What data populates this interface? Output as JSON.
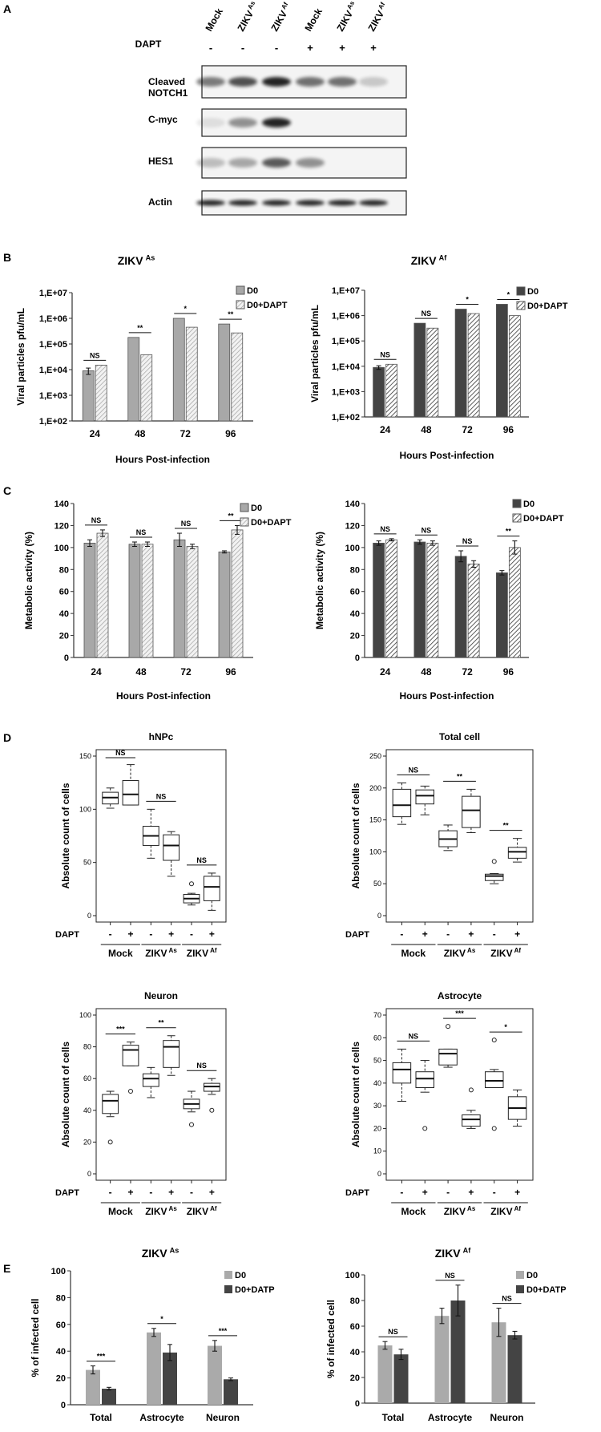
{
  "panels": {
    "A": "A",
    "B": "B",
    "C": "C",
    "D": "D",
    "E": "E"
  },
  "blot": {
    "lanes": [
      {
        "label": "Mock",
        "sup": ""
      },
      {
        "label": "ZIKV",
        "sup": "As"
      },
      {
        "label": "ZIKV",
        "sup": "Af"
      },
      {
        "label": "Mock",
        "sup": ""
      },
      {
        "label": "ZIKV",
        "sup": "As"
      },
      {
        "label": "ZIKV",
        "sup": "Af"
      }
    ],
    "treatment_label": "DAPT",
    "treatment": [
      "-",
      "-",
      "-",
      "+",
      "+",
      "+"
    ],
    "rows": [
      "Cleaved NOTCH1",
      "C-myc",
      "HES1",
      "Actin"
    ],
    "intensity": {
      "Cleaved NOTCH1": [
        0.55,
        0.75,
        0.95,
        0.6,
        0.6,
        0.2
      ],
      "C-myc": [
        0.1,
        0.45,
        0.95,
        0,
        0,
        0
      ],
      "HES1": [
        0.25,
        0.35,
        0.7,
        0.45,
        0,
        0
      ],
      "Actin": [
        0.95,
        0.95,
        0.95,
        0.95,
        0.95,
        0.95
      ]
    }
  },
  "chart_data": [
    {
      "id": "B-left",
      "type": "bar",
      "title": "ZIKV",
      "title_sup": "As",
      "xlabel": "Hours Post-infection",
      "ylabel": "Viral particles pfu/mL",
      "yscale": "log",
      "ylim": [
        100,
        10000000
      ],
      "yticks": [
        "1,E+02",
        "1,E+03",
        "1,E+04",
        "1,E+05",
        "1,E+06",
        "1,E+07"
      ],
      "categories": [
        "24",
        "48",
        "72",
        "96"
      ],
      "series": [
        {
          "name": "D0",
          "values": [
            9000,
            180000,
            1000000,
            600000
          ],
          "err": [
            2500,
            0,
            0,
            0
          ]
        },
        {
          "name": "D0+DAPT",
          "values": [
            15000,
            38000,
            450000,
            270000
          ],
          "err": [
            0,
            0,
            0,
            0
          ]
        }
      ],
      "sig": [
        "NS",
        "**",
        "*",
        "**"
      ],
      "color": "light"
    },
    {
      "id": "B-right",
      "type": "bar",
      "title": "ZIKV",
      "title_sup": "Af",
      "xlabel": "Hours Post-infection",
      "ylabel": "Viral particles pfu/mL",
      "yscale": "log",
      "ylim": [
        100,
        10000000
      ],
      "yticks": [
        "1,E+02",
        "1,E+03",
        "1,E+04",
        "1,E+05",
        "1,E+06",
        "1,E+07"
      ],
      "categories": [
        "24",
        "48",
        "72",
        "96"
      ],
      "series": [
        {
          "name": "D0",
          "values": [
            9000,
            500000,
            1800000,
            2800000
          ],
          "err": [
            1500,
            0,
            0,
            0
          ]
        },
        {
          "name": "D0+DAPT",
          "values": [
            12000,
            320000,
            1200000,
            1000000
          ],
          "err": [
            0,
            0,
            0,
            0
          ]
        }
      ],
      "sig": [
        "NS",
        "NS",
        "*",
        "*"
      ],
      "color": "dark"
    },
    {
      "id": "C-left",
      "type": "bar",
      "title": "",
      "xlabel": "Hours Post-infection",
      "ylabel": "Metabolic activity (%)",
      "ylim": [
        0,
        140
      ],
      "yticks": [
        "0",
        "20",
        "40",
        "60",
        "80",
        "100",
        "120",
        "140"
      ],
      "categories": [
        "24",
        "48",
        "72",
        "96"
      ],
      "series": [
        {
          "name": "D0",
          "values": [
            104,
            103,
            107,
            96
          ],
          "err": [
            3,
            2,
            6,
            1
          ]
        },
        {
          "name": "D0+DAPT",
          "values": [
            113,
            103,
            101,
            116
          ],
          "err": [
            3,
            2,
            2,
            4
          ]
        }
      ],
      "sig": [
        "NS",
        "NS",
        "NS",
        "**"
      ],
      "color": "light"
    },
    {
      "id": "C-right",
      "type": "bar",
      "title": "",
      "xlabel": "Hours Post-infection",
      "ylabel": "Metabolic activity (%)",
      "ylim": [
        0,
        140
      ],
      "yticks": [
        "0",
        "20",
        "40",
        "60",
        "80",
        "100",
        "120",
        "140"
      ],
      "categories": [
        "24",
        "48",
        "72",
        "96"
      ],
      "series": [
        {
          "name": "D0",
          "values": [
            104,
            105,
            92,
            77
          ],
          "err": [
            2,
            2,
            5,
            2
          ]
        },
        {
          "name": "D0+DAPT",
          "values": [
            107,
            104,
            85,
            100
          ],
          "err": [
            1,
            2,
            3,
            6
          ]
        }
      ],
      "sig": [
        "NS",
        "NS",
        "NS",
        "**"
      ],
      "color": "dark"
    },
    {
      "id": "D-hNPc",
      "type": "boxplot",
      "title": "hNPc",
      "ylabel": "Absolute count of  cells",
      "ylim": [
        0,
        150
      ],
      "yticks": [
        "0",
        "50",
        "100",
        "150"
      ],
      "treatment_label": "DAPT",
      "treatment": [
        "-",
        "+",
        "-",
        "+",
        "-",
        "+"
      ],
      "groups": [
        {
          "label": "Mock",
          "sup": ""
        },
        {
          "label": "ZIKV",
          "sup": "As"
        },
        {
          "label": "ZIKV",
          "sup": "Af"
        }
      ],
      "boxes": [
        {
          "min": 101,
          "q1": 105,
          "median": 111,
          "q3": 116,
          "max": 120,
          "outliers": []
        },
        {
          "min": 104,
          "q1": 104,
          "median": 114,
          "q3": 127,
          "max": 142,
          "outliers": []
        },
        {
          "min": 54,
          "q1": 66,
          "median": 75,
          "q3": 84,
          "max": 100,
          "outliers": []
        },
        {
          "min": 37,
          "q1": 52,
          "median": 66,
          "q3": 76,
          "max": 79,
          "outliers": []
        },
        {
          "min": 10,
          "q1": 12,
          "median": 16,
          "q3": 20,
          "max": 21,
          "outliers": [
            30
          ]
        },
        {
          "min": 5,
          "q1": 14,
          "median": 27,
          "q3": 37,
          "max": 40,
          "outliers": []
        }
      ],
      "sig": [
        "NS",
        "NS",
        "NS"
      ]
    },
    {
      "id": "D-total",
      "type": "boxplot",
      "title": "Total cell",
      "ylabel": "Absolute count of  cells",
      "ylim": [
        0,
        250
      ],
      "yticks": [
        "0",
        "50",
        "100",
        "150",
        "200",
        "250"
      ],
      "treatment_label": "DAPT",
      "treatment": [
        "-",
        "+",
        "-",
        "+",
        "-",
        "+"
      ],
      "groups": [
        {
          "label": "Mock",
          "sup": ""
        },
        {
          "label": "ZIKV",
          "sup": "As"
        },
        {
          "label": "ZIKV",
          "sup": "Af"
        }
      ],
      "boxes": [
        {
          "min": 143,
          "q1": 155,
          "median": 173,
          "q3": 198,
          "max": 208,
          "outliers": []
        },
        {
          "min": 158,
          "q1": 175,
          "median": 188,
          "q3": 197,
          "max": 203,
          "outliers": []
        },
        {
          "min": 102,
          "q1": 108,
          "median": 120,
          "q3": 133,
          "max": 142,
          "outliers": []
        },
        {
          "min": 130,
          "q1": 138,
          "median": 165,
          "q3": 187,
          "max": 198,
          "outliers": []
        },
        {
          "min": 50,
          "q1": 55,
          "median": 62,
          "q3": 65,
          "max": 66,
          "outliers": [
            85
          ]
        },
        {
          "min": 84,
          "q1": 90,
          "median": 100,
          "q3": 107,
          "max": 121,
          "outliers": []
        }
      ],
      "sig": [
        "NS",
        "**",
        "**"
      ]
    },
    {
      "id": "D-neuron",
      "type": "boxplot",
      "title": "Neuron",
      "ylabel": "Absolute count of  cells",
      "ylim": [
        0,
        100
      ],
      "yticks": [
        "0",
        "20",
        "40",
        "60",
        "80",
        "100"
      ],
      "treatment_label": "DAPT",
      "treatment": [
        "-",
        "+",
        "-",
        "+",
        "-",
        "+"
      ],
      "groups": [
        {
          "label": "Mock",
          "sup": ""
        },
        {
          "label": "ZIKV",
          "sup": "As"
        },
        {
          "label": "ZIKV",
          "sup": "Af"
        }
      ],
      "boxes": [
        {
          "min": 36,
          "q1": 38,
          "median": 46,
          "q3": 50,
          "max": 52,
          "outliers": [
            20
          ]
        },
        {
          "min": 68,
          "q1": 68,
          "median": 78,
          "q3": 81,
          "max": 83,
          "outliers": [
            52
          ]
        },
        {
          "min": 48,
          "q1": 55,
          "median": 60,
          "q3": 63,
          "max": 67,
          "outliers": []
        },
        {
          "min": 62,
          "q1": 67,
          "median": 80,
          "q3": 84,
          "max": 87,
          "outliers": []
        },
        {
          "min": 39,
          "q1": 41,
          "median": 44,
          "q3": 47,
          "max": 52,
          "outliers": [
            31
          ]
        },
        {
          "min": 50,
          "q1": 52,
          "median": 55,
          "q3": 57,
          "max": 60,
          "outliers": [
            40
          ]
        }
      ],
      "sig": [
        "***",
        "**",
        "NS"
      ]
    },
    {
      "id": "D-astrocyte",
      "type": "boxplot",
      "title": "Astrocyte",
      "ylabel": "Absolute count of  cells",
      "ylim": [
        0,
        70
      ],
      "yticks": [
        "0",
        "10",
        "20",
        "30",
        "40",
        "50",
        "60",
        "70"
      ],
      "treatment_label": "DAPT",
      "treatment": [
        "-",
        "+",
        "-",
        "+",
        "-",
        "+"
      ],
      "groups": [
        {
          "label": "Mock",
          "sup": ""
        },
        {
          "label": "ZIKV",
          "sup": "As"
        },
        {
          "label": "ZIKV",
          "sup": "Af"
        }
      ],
      "boxes": [
        {
          "min": 32,
          "q1": 40,
          "median": 46,
          "q3": 49,
          "max": 55,
          "outliers": []
        },
        {
          "min": 36,
          "q1": 38,
          "median": 42,
          "q3": 45,
          "max": 50,
          "outliers": [
            20
          ]
        },
        {
          "min": 47,
          "q1": 48,
          "median": 53,
          "q3": 55,
          "max": 55,
          "outliers": [
            65
          ]
        },
        {
          "min": 20,
          "q1": 21,
          "median": 24,
          "q3": 26,
          "max": 28,
          "outliers": [
            37
          ]
        },
        {
          "min": 38,
          "q1": 38,
          "median": 41,
          "q3": 45,
          "max": 46,
          "outliers": [
            59,
            20
          ]
        },
        {
          "min": 21,
          "q1": 24,
          "median": 29,
          "q3": 34,
          "max": 37,
          "outliers": []
        }
      ],
      "sig": [
        "NS",
        "***",
        "*"
      ]
    },
    {
      "id": "E-left",
      "type": "bar",
      "title": "ZIKV",
      "title_sup": "As",
      "ylabel": "% of infected cell",
      "ylim": [
        0,
        100
      ],
      "yticks": [
        "0",
        "20",
        "40",
        "60",
        "80",
        "100"
      ],
      "categories": [
        "Total",
        "Astrocyte",
        "Neuron"
      ],
      "series": [
        {
          "name": "D0",
          "values": [
            26,
            54,
            44
          ],
          "err": [
            3,
            3,
            4
          ]
        },
        {
          "name": "D0+DATP",
          "values": [
            12,
            39,
            19
          ],
          "err": [
            1,
            6,
            1
          ]
        }
      ],
      "sig": [
        "***",
        "*",
        "***"
      ]
    },
    {
      "id": "E-right",
      "type": "bar",
      "title": "ZIKV",
      "title_sup": "Af",
      "ylabel": "% of infected cell",
      "ylim": [
        0,
        100
      ],
      "yticks": [
        "0",
        "20",
        "40",
        "60",
        "80",
        "100"
      ],
      "categories": [
        "Total",
        "Astrocyte",
        "Neuron"
      ],
      "series": [
        {
          "name": "D0",
          "values": [
            45,
            68,
            63
          ],
          "err": [
            3,
            6,
            11
          ]
        },
        {
          "name": "D0+DATP",
          "values": [
            38,
            80,
            53
          ],
          "err": [
            4,
            12,
            3
          ]
        }
      ],
      "sig": [
        "NS",
        "NS",
        "NS"
      ]
    }
  ]
}
